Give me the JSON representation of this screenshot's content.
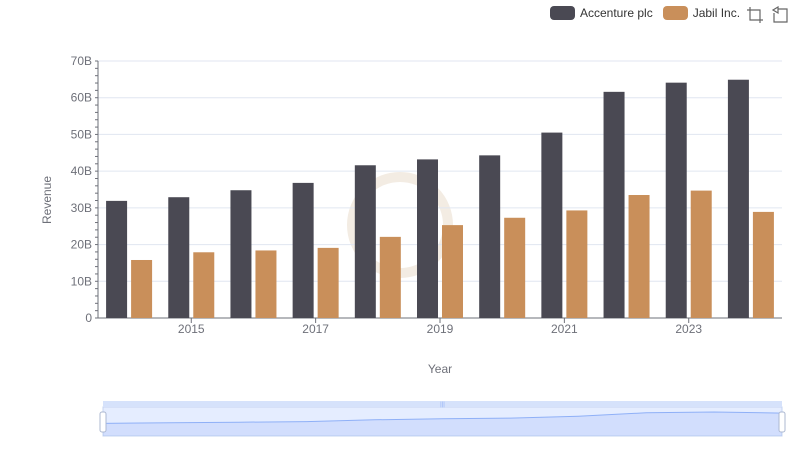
{
  "legend": [
    {
      "name": "Accenture plc",
      "color": "#4a4953"
    },
    {
      "name": "Jabil Inc.",
      "color": "#c98f5a"
    }
  ],
  "toolbox": [
    {
      "icon": "zoom-icon"
    },
    {
      "icon": "restore-icon"
    }
  ],
  "chart_data": {
    "type": "bar",
    "xlabel": "Year",
    "ylabel": "Revenue",
    "ylim": [
      0,
      70
    ],
    "y_unit": "B",
    "y_ticks": [
      "0",
      "10B",
      "20B",
      "30B",
      "40B",
      "50B",
      "60B",
      "70B"
    ],
    "categories": [
      "2014",
      "2015",
      "2016",
      "2017",
      "2018",
      "2019",
      "2020",
      "2021",
      "2022",
      "2023",
      "2024"
    ],
    "x_tick_labels": [
      "2015",
      "2017",
      "2019",
      "2021",
      "2023"
    ],
    "series": [
      {
        "name": "Accenture plc",
        "color": "#4a4953",
        "values": [
          31.9,
          32.9,
          34.8,
          36.8,
          41.6,
          43.2,
          44.3,
          50.5,
          61.6,
          64.1,
          64.9
        ]
      },
      {
        "name": "Jabil Inc.",
        "color": "#c98f5a",
        "values": [
          15.8,
          17.9,
          18.4,
          19.1,
          22.1,
          25.3,
          27.3,
          29.3,
          33.5,
          34.7,
          28.9
        ]
      }
    ],
    "grid": true,
    "legend_position": "top-right",
    "data_zoom": {
      "start": 0,
      "end": 100
    }
  }
}
